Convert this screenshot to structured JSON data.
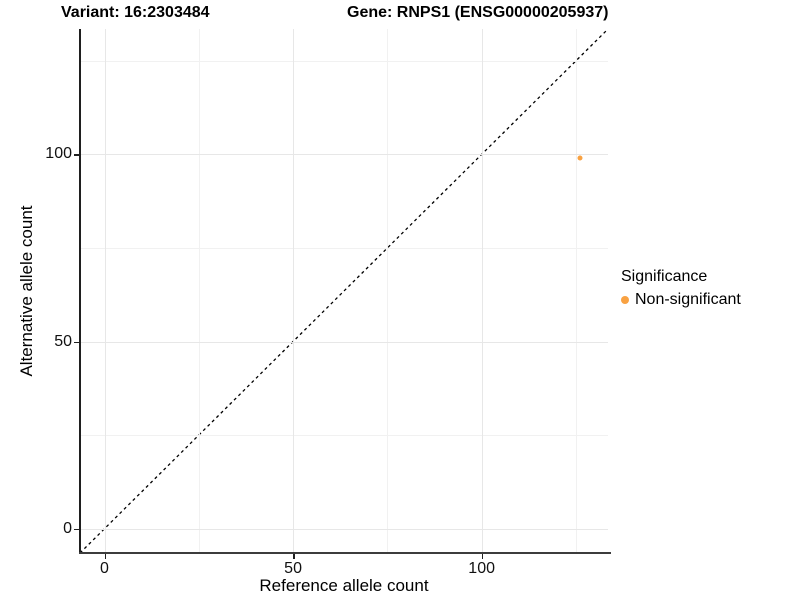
{
  "titles": {
    "variant": "Variant: 16:2303484",
    "gene": "Gene: RNPS1 (ENSG00000205937)"
  },
  "axes": {
    "x_label": "Reference allele count",
    "y_label": "Alternative allele count",
    "x_tick_labels": [
      "0",
      "50",
      "100"
    ],
    "y_tick_labels": [
      "0",
      "50",
      "100"
    ]
  },
  "legend": {
    "title": "Significance",
    "items": [
      {
        "label": "Non-significant",
        "color": "#F9A242"
      }
    ]
  },
  "colors": {
    "point_orange": "#F9A242",
    "grid_major": "#e7e7e7",
    "grid_minor": "#f1f1f1",
    "axis_line": "#1f1f1f",
    "reference_line": "#000000",
    "background": "#ffffff"
  },
  "chart_data": {
    "type": "scatter",
    "title": "Variant: 16:2303484 | Gene: RNPS1 (ENSG00000205937)",
    "xlabel": "Reference allele count",
    "ylabel": "Alternative allele count",
    "xlim": [
      -6.5,
      133.5
    ],
    "ylim": [
      -6.5,
      133.5
    ],
    "x_ticks": [
      0,
      50,
      100
    ],
    "y_ticks": [
      0,
      50,
      100
    ],
    "x_minor_ticks": [
      25,
      75,
      125
    ],
    "y_minor_ticks": [
      25,
      75,
      125
    ],
    "grid": true,
    "legend_position": "right",
    "series": [
      {
        "name": "Non-significant",
        "color": "#F9A242",
        "points": [
          {
            "x": 126,
            "y": 99
          }
        ]
      }
    ],
    "reference_line": {
      "kind": "identity y=x",
      "style": "dashed",
      "color": "#000000"
    }
  }
}
